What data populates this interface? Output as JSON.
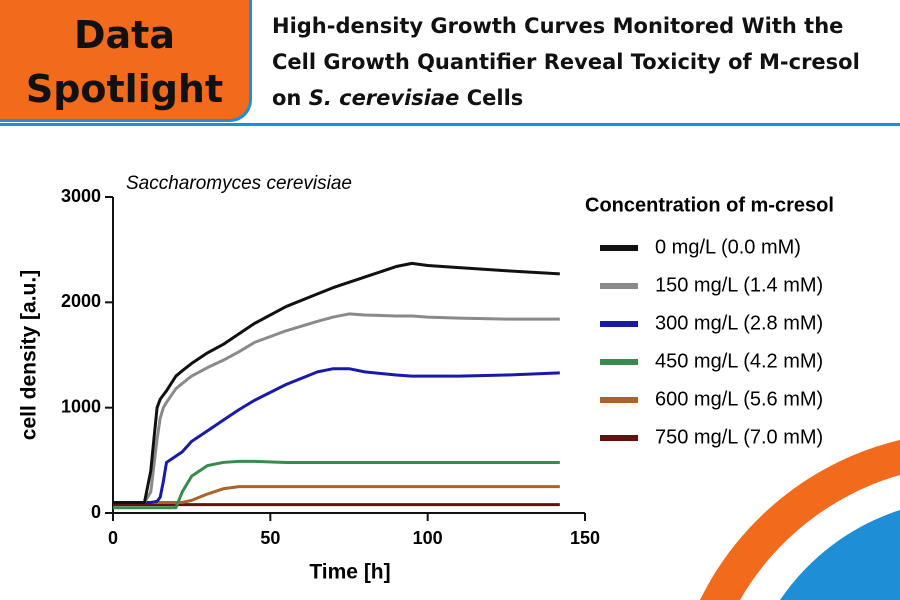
{
  "header": {
    "badge_lines": [
      "Data",
      "Spotlight"
    ],
    "title_parts": [
      "High-density Growth Curves Monitored With the Cell Growth Quantifier Reveal Toxicity of M-cresol on ",
      "S. cerevisiae",
      " Cells"
    ]
  },
  "chart_data": {
    "type": "line",
    "annotation": "Saccharomyces cerevisiae",
    "x_label": "Time [h]",
    "y_label": "cell density [a.u.]",
    "legend_title": "Concentration of m-cresol",
    "x": [
      0,
      10,
      12,
      14,
      15,
      16,
      17,
      20,
      22,
      25,
      30,
      35,
      40,
      45,
      55,
      65,
      70,
      75,
      80,
      90,
      95,
      100,
      110,
      125,
      142
    ],
    "series": [
      {
        "name": "0 mg/L (0.0 mM)",
        "color": "#111111",
        "values": [
          100,
          100,
          400,
          1000,
          1080,
          1120,
          1160,
          1300,
          1350,
          1420,
          1520,
          1600,
          1700,
          1800,
          1960,
          2080,
          2140,
          2190,
          2240,
          2340,
          2370,
          2350,
          2330,
          2300,
          2270
        ]
      },
      {
        "name": "150 mg/L (1.4 mM)",
        "color": "#8a8a8a",
        "values": [
          100,
          100,
          200,
          700,
          900,
          1000,
          1050,
          1180,
          1230,
          1300,
          1380,
          1450,
          1530,
          1620,
          1730,
          1820,
          1860,
          1890,
          1880,
          1870,
          1870,
          1860,
          1850,
          1840,
          1840
        ]
      },
      {
        "name": "300 mg/L (2.8 mM)",
        "color": "#1a1aa8",
        "values": [
          100,
          100,
          100,
          110,
          150,
          300,
          480,
          540,
          580,
          680,
          780,
          880,
          980,
          1070,
          1220,
          1340,
          1370,
          1370,
          1340,
          1310,
          1300,
          1300,
          1300,
          1310,
          1330
        ]
      },
      {
        "name": "450 mg/L (4.2 mM)",
        "color": "#3a8a50",
        "values": [
          50,
          50,
          50,
          50,
          50,
          50,
          50,
          50,
          200,
          350,
          450,
          480,
          490,
          490,
          480,
          480,
          480,
          480,
          480,
          480,
          480,
          480,
          480,
          480,
          480
        ]
      },
      {
        "name": "600 mg/L (5.6 mM)",
        "color": "#a8642a",
        "values": [
          100,
          100,
          100,
          100,
          100,
          100,
          100,
          100,
          100,
          120,
          180,
          230,
          250,
          250,
          250,
          250,
          250,
          250,
          250,
          250,
          250,
          250,
          250,
          250,
          250
        ]
      },
      {
        "name": "750 mg/L (7.0 mM)",
        "color": "#6a0f0f",
        "values": [
          80,
          80,
          80,
          80,
          80,
          80,
          80,
          80,
          80,
          80,
          80,
          80,
          80,
          80,
          80,
          80,
          80,
          80,
          80,
          80,
          80,
          80,
          80,
          80,
          80
        ]
      }
    ],
    "xlim": [
      0,
      150
    ],
    "xticks": [
      0,
      50,
      100,
      150
    ],
    "ylim": [
      0,
      3000
    ],
    "yticks": [
      0,
      1000,
      2000,
      3000
    ]
  }
}
